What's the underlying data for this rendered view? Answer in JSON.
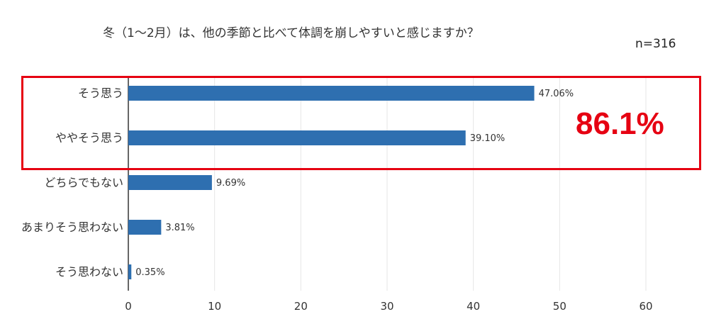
{
  "chart_data": {
    "type": "bar",
    "orientation": "horizontal",
    "title": "冬（1〜2月）は、他の季節と比べて体調を崩しやすいと感じますか？",
    "sample_size": "n=316",
    "categories": [
      "そう思う",
      "ややそう思う",
      "どちらでもない",
      "あまりそう思わない",
      "そう思わない"
    ],
    "values": [
      47.06,
      39.1,
      9.69,
      3.81,
      0.35
    ],
    "data_labels": [
      "47.06%",
      "39.10%",
      "9.69%",
      "3.81%",
      "0.35%"
    ],
    "xlim": [
      0,
      60
    ],
    "xticks": [
      "0",
      "10",
      "20",
      "30",
      "40",
      "50",
      "60"
    ],
    "grid": true,
    "bar_color": "#2e6fb0",
    "annotation": {
      "text": "86.1%",
      "color": "#e60012",
      "highlight_categories": [
        "そう思う",
        "ややそう思う"
      ]
    }
  }
}
